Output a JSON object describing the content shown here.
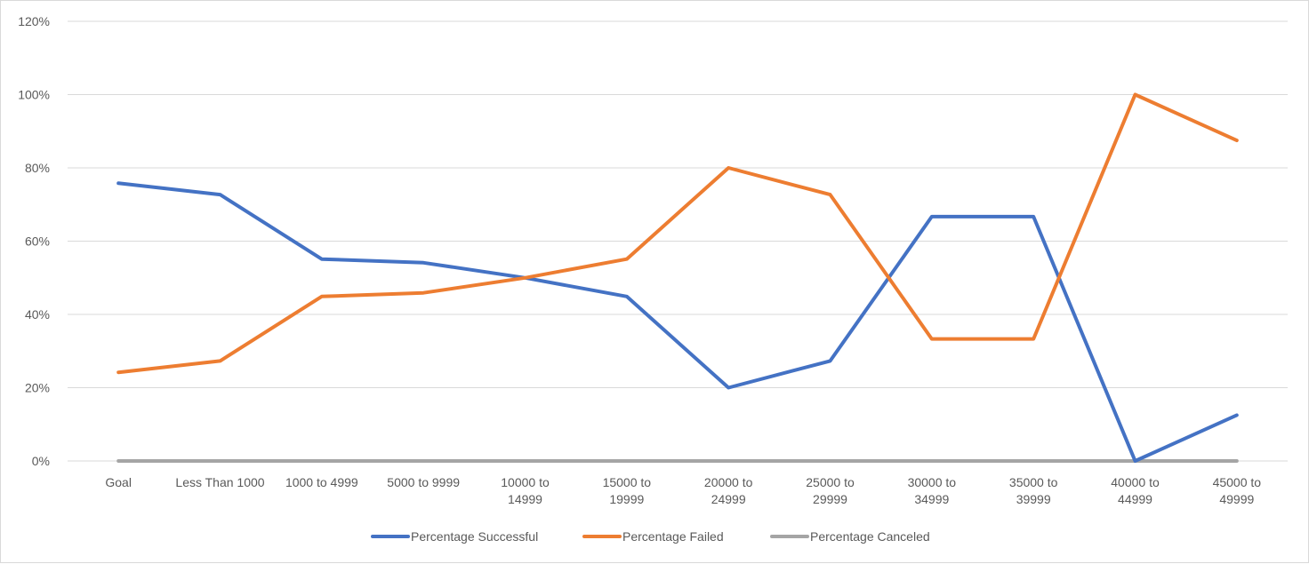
{
  "chart_data": {
    "type": "line",
    "categories": [
      [
        "Goal"
      ],
      [
        "Less Than 1000"
      ],
      [
        "1000 to 4999"
      ],
      [
        "5000 to 9999"
      ],
      [
        "10000 to",
        "14999"
      ],
      [
        "15000 to",
        "19999"
      ],
      [
        "20000 to",
        "24999"
      ],
      [
        "25000 to",
        "29999"
      ],
      [
        "30000 to",
        "34999"
      ],
      [
        "35000 to",
        "39999"
      ],
      [
        "40000 to",
        "44999"
      ],
      [
        "45000 to",
        "49999"
      ]
    ],
    "series": [
      {
        "name": "Percentage Successful",
        "color": "#4472c4",
        "values": [
          75.8,
          72.7,
          55.1,
          54.1,
          50.0,
          44.9,
          20.0,
          27.3,
          66.7,
          66.7,
          0.0,
          12.5
        ]
      },
      {
        "name": "Percentage Failed",
        "color": "#ed7d31",
        "values": [
          24.2,
          27.3,
          44.9,
          45.9,
          50.0,
          55.1,
          80.0,
          72.7,
          33.3,
          33.3,
          100.0,
          87.5
        ]
      },
      {
        "name": "Percentage Canceled",
        "color": "#a5a5a5",
        "values": [
          0,
          0,
          0,
          0,
          0,
          0,
          0,
          0,
          0,
          0,
          0,
          0
        ]
      }
    ],
    "y_ticks": [
      "0%",
      "20%",
      "40%",
      "60%",
      "80%",
      "100%",
      "120%"
    ],
    "ylim": [
      0,
      120
    ],
    "grid": true,
    "legend": "bottom",
    "title": "",
    "xlabel": "",
    "ylabel": ""
  }
}
